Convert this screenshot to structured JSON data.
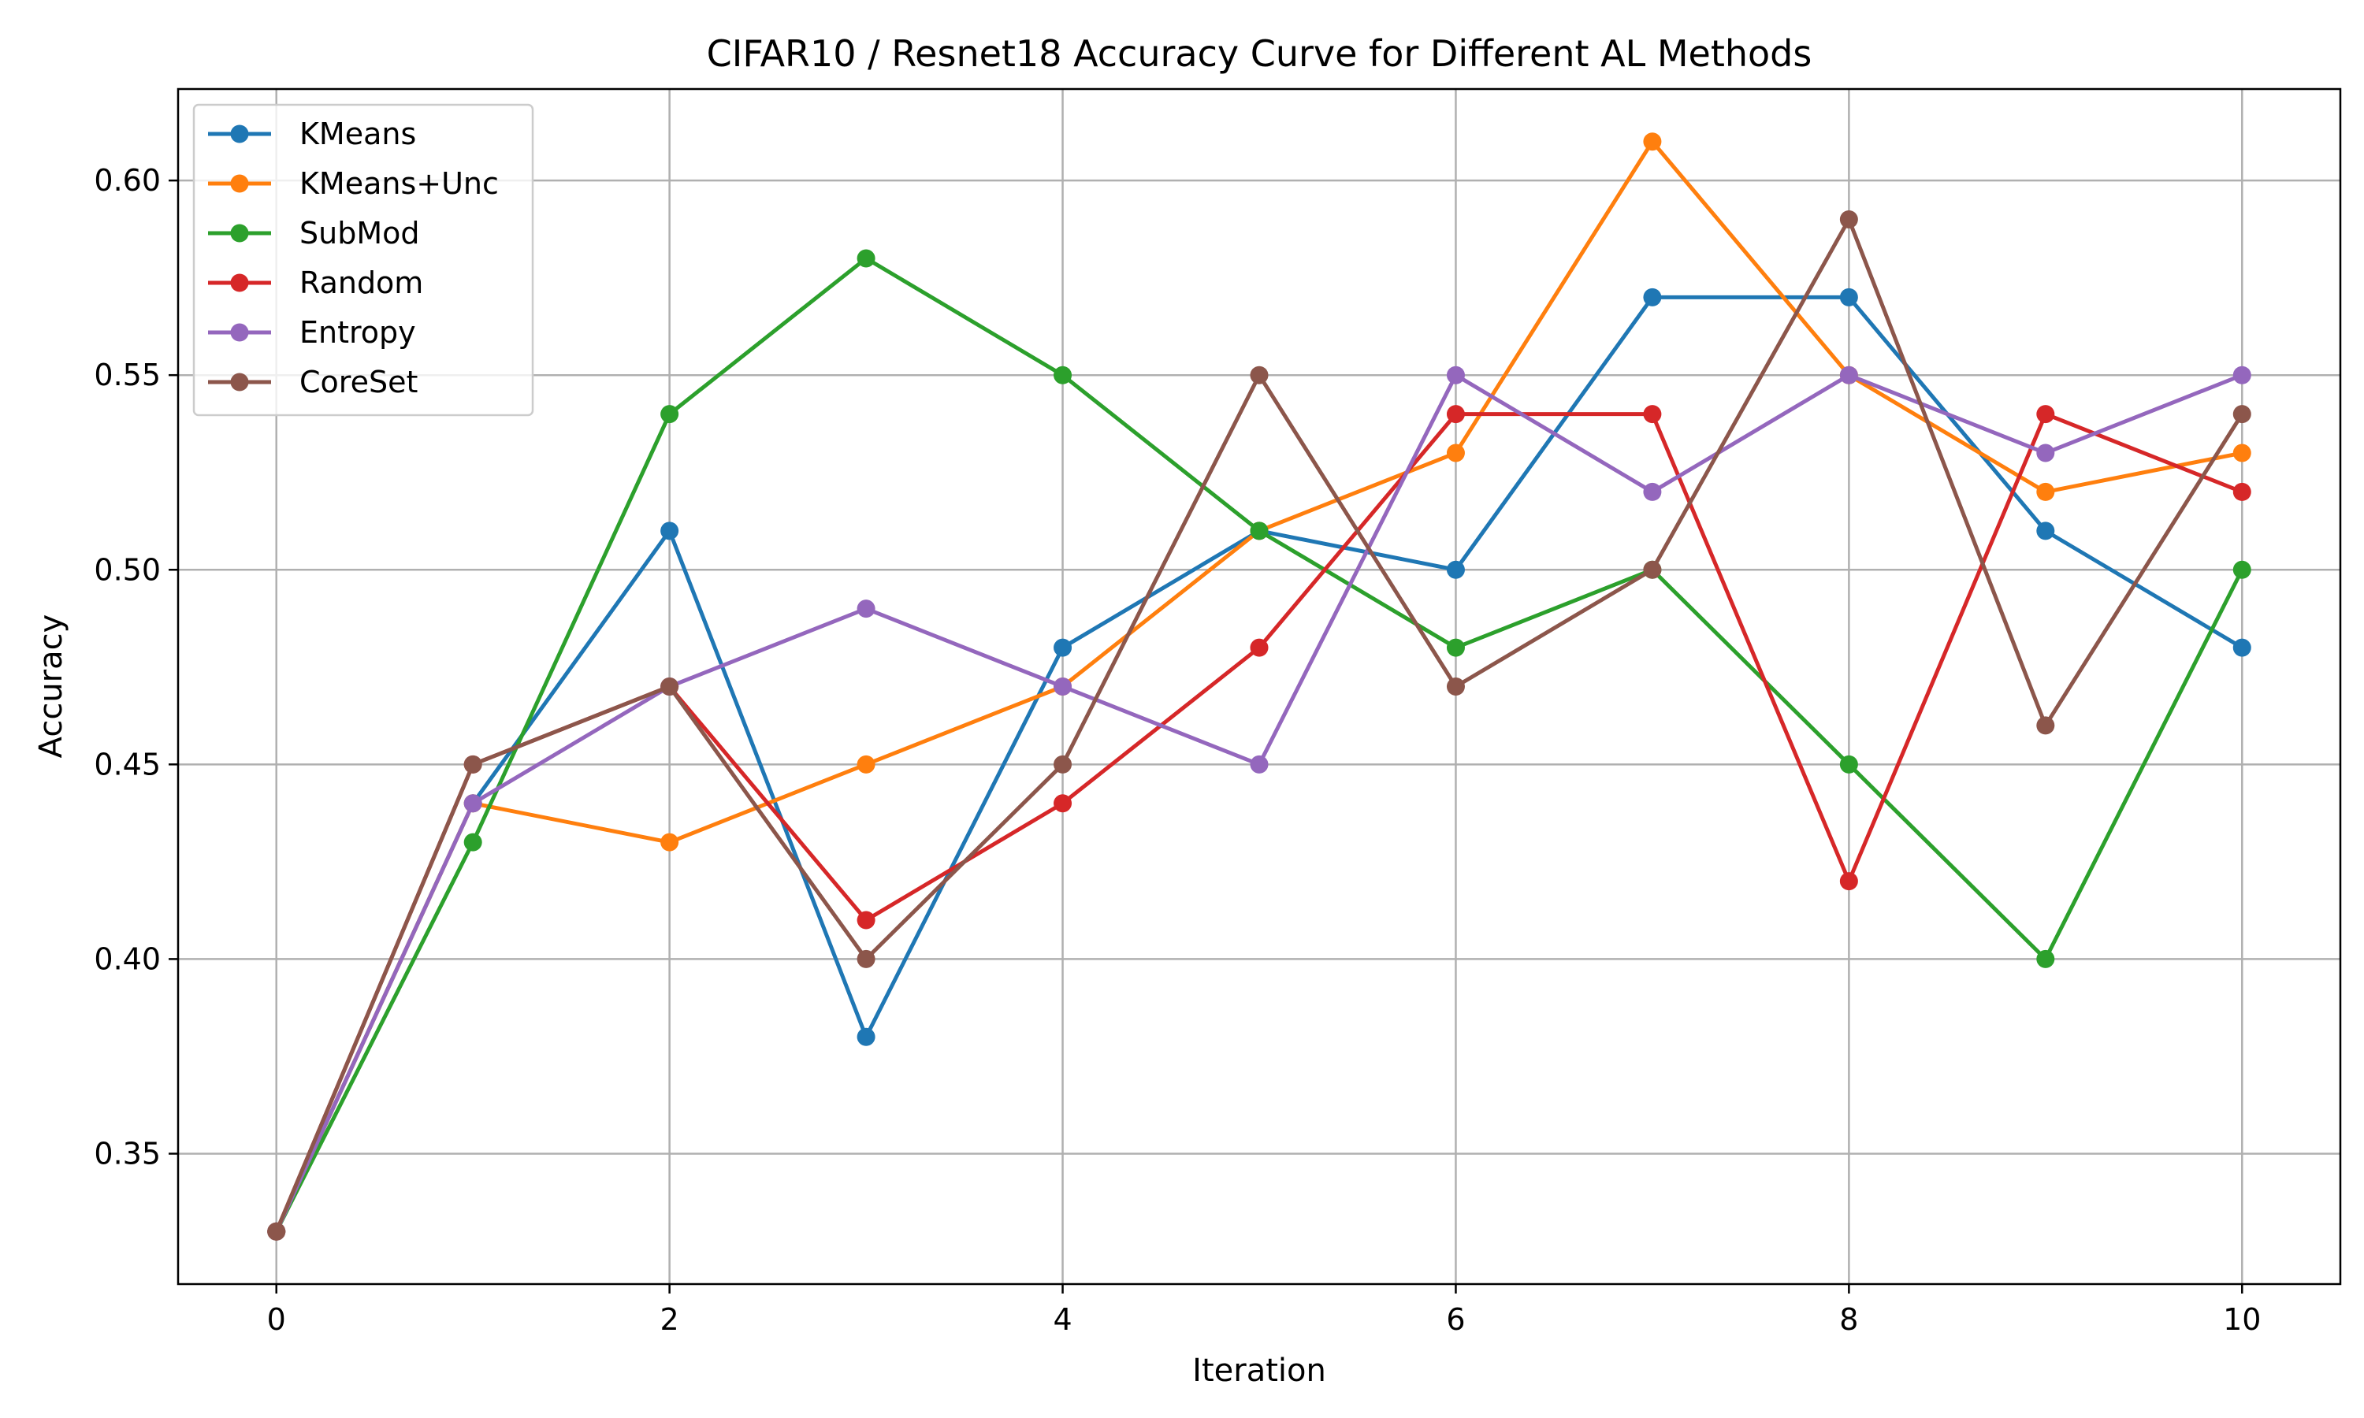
{
  "chart_data": {
    "type": "line",
    "title": "CIFAR10 / Resnet18 Accuracy Curve for Different AL Methods",
    "xlabel": "Iteration",
    "ylabel": "Accuracy",
    "xlim": [
      -0.5,
      10.5
    ],
    "ylim": [
      0.3165,
      0.6235
    ],
    "xticks": [
      0,
      2,
      4,
      6,
      8,
      10
    ],
    "xtick_labels": [
      "0",
      "2",
      "4",
      "6",
      "8",
      "10"
    ],
    "yticks": [
      0.35,
      0.4,
      0.45,
      0.5,
      0.55,
      0.6
    ],
    "ytick_labels": [
      "0.35",
      "0.40",
      "0.45",
      "0.50",
      "0.55",
      "0.60"
    ],
    "grid": true,
    "legend_position": "top-left",
    "x": [
      0,
      1,
      2,
      3,
      4,
      5,
      6,
      7,
      8,
      9,
      10
    ],
    "series": [
      {
        "name": "KMeans",
        "color": "#1f77b4",
        "values": [
          0.33,
          0.44,
          0.51,
          0.38,
          0.48,
          0.51,
          0.5,
          0.57,
          0.57,
          0.51,
          0.48
        ]
      },
      {
        "name": "KMeans+Unc",
        "color": "#ff7f0e",
        "values": [
          0.33,
          0.44,
          0.43,
          0.45,
          0.47,
          0.51,
          0.53,
          0.61,
          0.55,
          0.52,
          0.53
        ]
      },
      {
        "name": "SubMod",
        "color": "#2ca02c",
        "values": [
          0.33,
          0.43,
          0.54,
          0.58,
          0.55,
          0.51,
          0.48,
          0.5,
          0.45,
          0.4,
          0.5
        ]
      },
      {
        "name": "Random",
        "color": "#d62728",
        "values": [
          0.33,
          0.45,
          0.47,
          0.41,
          0.44,
          0.48,
          0.54,
          0.54,
          0.42,
          0.54,
          0.52
        ]
      },
      {
        "name": "Entropy",
        "color": "#9467bd",
        "values": [
          0.33,
          0.44,
          0.47,
          0.49,
          0.47,
          0.45,
          0.55,
          0.52,
          0.55,
          0.53,
          0.55
        ]
      },
      {
        "name": "CoreSet",
        "color": "#8c564b",
        "values": [
          0.33,
          0.45,
          0.47,
          0.4,
          0.45,
          0.55,
          0.47,
          0.5,
          0.59,
          0.46,
          0.54
        ]
      }
    ]
  }
}
